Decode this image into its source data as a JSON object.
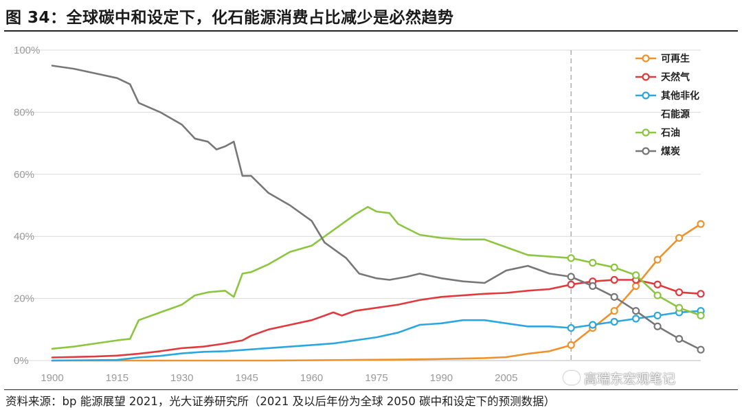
{
  "header": {
    "title": "图 34：全球碳中和设定下，化石能源消费占比减少是必然趋势"
  },
  "footer": {
    "source": "资料来源：bp 能源展望 2021，光大证券研究所（2021 及以后年份为全球 2050 碳中和设定下的预测数据）",
    "watermark": "高瑞东宏观笔记"
  },
  "chart_data": {
    "type": "line",
    "title": "",
    "xlabel": "",
    "ylabel": "",
    "xlim": [
      1900,
      2050
    ],
    "ylim": [
      0,
      100
    ],
    "x_ticks": [
      1900,
      1915,
      1930,
      1945,
      1960,
      1975,
      1990,
      2005
    ],
    "y_ticks": [
      0,
      20,
      40,
      60,
      80,
      100
    ],
    "y_tick_format": "percent",
    "grid": "horizontal",
    "legend": "top-right",
    "forecast_start": 2020,
    "forecast_marker_years": [
      2020,
      2025,
      2030,
      2035,
      2040,
      2045,
      2050
    ],
    "colors": {
      "renewables": "#f0922b",
      "gas": "#e03a3e",
      "other": "#2aa7df",
      "oil": "#8cc63f",
      "coal": "#777777",
      "grid": "#d9d9d9",
      "axis_text": "#9a9a9a",
      "divider": "#9a9a9a"
    },
    "series": [
      {
        "key": "renewables",
        "name": "可再生",
        "points": [
          [
            1900,
            0
          ],
          [
            1950,
            0
          ],
          [
            1970,
            0.2
          ],
          [
            1980,
            0.3
          ],
          [
            1990,
            0.5
          ],
          [
            2000,
            0.8
          ],
          [
            2005,
            1.1
          ],
          [
            2010,
            2.2
          ],
          [
            2015,
            3
          ],
          [
            2019,
            4.6
          ],
          [
            2020,
            5
          ],
          [
            2025,
            10.5
          ],
          [
            2030,
            16
          ],
          [
            2035,
            24
          ],
          [
            2040,
            32.5
          ],
          [
            2045,
            39.5
          ],
          [
            2050,
            44
          ]
        ]
      },
      {
        "key": "gas",
        "name": "天然气",
        "points": [
          [
            1900,
            1
          ],
          [
            1910,
            1.3
          ],
          [
            1915,
            1.6
          ],
          [
            1920,
            2.2
          ],
          [
            1925,
            3
          ],
          [
            1930,
            4
          ],
          [
            1935,
            4.5
          ],
          [
            1940,
            5.5
          ],
          [
            1944,
            6.5
          ],
          [
            1946,
            8
          ],
          [
            1950,
            10
          ],
          [
            1955,
            11.5
          ],
          [
            1960,
            13
          ],
          [
            1963,
            14.5
          ],
          [
            1965,
            15.5
          ],
          [
            1967,
            14.5
          ],
          [
            1970,
            16
          ],
          [
            1975,
            17
          ],
          [
            1980,
            18
          ],
          [
            1985,
            19.5
          ],
          [
            1990,
            20.5
          ],
          [
            1995,
            21
          ],
          [
            2000,
            21.5
          ],
          [
            2005,
            21.8
          ],
          [
            2010,
            22.5
          ],
          [
            2015,
            23
          ],
          [
            2020,
            24.5
          ],
          [
            2025,
            25.5
          ],
          [
            2030,
            26
          ],
          [
            2035,
            26
          ],
          [
            2040,
            24.5
          ],
          [
            2045,
            22
          ],
          [
            2050,
            21.5
          ]
        ]
      },
      {
        "key": "other",
        "name": "其他非化石能源",
        "points": [
          [
            1900,
            0
          ],
          [
            1915,
            0.2
          ],
          [
            1920,
            1
          ],
          [
            1925,
            1.5
          ],
          [
            1930,
            2.3
          ],
          [
            1935,
            2.8
          ],
          [
            1940,
            3
          ],
          [
            1945,
            3.5
          ],
          [
            1950,
            4
          ],
          [
            1955,
            4.5
          ],
          [
            1960,
            5
          ],
          [
            1965,
            5.5
          ],
          [
            1970,
            6.5
          ],
          [
            1975,
            7.5
          ],
          [
            1980,
            9
          ],
          [
            1985,
            11.5
          ],
          [
            1990,
            12
          ],
          [
            1995,
            13
          ],
          [
            2000,
            13
          ],
          [
            2005,
            12
          ],
          [
            2010,
            11
          ],
          [
            2015,
            11
          ],
          [
            2020,
            10.5
          ],
          [
            2025,
            11.5
          ],
          [
            2030,
            12.5
          ],
          [
            2035,
            13.5
          ],
          [
            2040,
            14.5
          ],
          [
            2045,
            15.5
          ],
          [
            2050,
            16
          ]
        ]
      },
      {
        "key": "oil",
        "name": "石油",
        "points": [
          [
            1900,
            3.8
          ],
          [
            1905,
            4.5
          ],
          [
            1910,
            5.5
          ],
          [
            1915,
            6.5
          ],
          [
            1918,
            7
          ],
          [
            1920,
            13
          ],
          [
            1925,
            15.5
          ],
          [
            1930,
            18
          ],
          [
            1933,
            21
          ],
          [
            1936,
            22
          ],
          [
            1940,
            22.5
          ],
          [
            1942,
            20.5
          ],
          [
            1944,
            28
          ],
          [
            1946,
            28.5
          ],
          [
            1950,
            31
          ],
          [
            1955,
            35
          ],
          [
            1960,
            37
          ],
          [
            1965,
            42
          ],
          [
            1970,
            47
          ],
          [
            1973,
            49.5
          ],
          [
            1975,
            48
          ],
          [
            1978,
            47.5
          ],
          [
            1980,
            44
          ],
          [
            1985,
            40.5
          ],
          [
            1990,
            39.5
          ],
          [
            1995,
            39
          ],
          [
            2000,
            39
          ],
          [
            2005,
            36.5
          ],
          [
            2010,
            34
          ],
          [
            2015,
            33.5
          ],
          [
            2020,
            33
          ],
          [
            2025,
            31.5
          ],
          [
            2030,
            30
          ],
          [
            2035,
            27.5
          ],
          [
            2040,
            21
          ],
          [
            2045,
            17
          ],
          [
            2050,
            14.5
          ]
        ]
      },
      {
        "key": "coal",
        "name": "煤炭",
        "points": [
          [
            1900,
            95
          ],
          [
            1905,
            94
          ],
          [
            1910,
            92.5
          ],
          [
            1915,
            91
          ],
          [
            1918,
            89
          ],
          [
            1920,
            83
          ],
          [
            1925,
            80
          ],
          [
            1930,
            76
          ],
          [
            1933,
            71.5
          ],
          [
            1936,
            70.5
          ],
          [
            1938,
            68
          ],
          [
            1940,
            69
          ],
          [
            1942,
            70.5
          ],
          [
            1944,
            59.5
          ],
          [
            1946,
            59.5
          ],
          [
            1950,
            54
          ],
          [
            1955,
            50
          ],
          [
            1958,
            47
          ],
          [
            1960,
            45
          ],
          [
            1963,
            38
          ],
          [
            1968,
            33
          ],
          [
            1971,
            28
          ],
          [
            1975,
            26.5
          ],
          [
            1978,
            26
          ],
          [
            1982,
            27
          ],
          [
            1985,
            28
          ],
          [
            1990,
            26.5
          ],
          [
            1995,
            25.5
          ],
          [
            2000,
            25
          ],
          [
            2005,
            29
          ],
          [
            2010,
            30.5
          ],
          [
            2015,
            28
          ],
          [
            2020,
            27
          ],
          [
            2025,
            24
          ],
          [
            2030,
            20.5
          ],
          [
            2035,
            16
          ],
          [
            2040,
            11
          ],
          [
            2045,
            7
          ],
          [
            2050,
            3.5
          ]
        ]
      }
    ],
    "legend_items": [
      {
        "key": "renewables",
        "label": "可再生"
      },
      {
        "key": "gas",
        "label": "天然气"
      },
      {
        "key": "other",
        "label": "其他非化\n石能源"
      },
      {
        "key": "oil",
        "label": "石油"
      },
      {
        "key": "coal",
        "label": "煤炭"
      }
    ]
  }
}
